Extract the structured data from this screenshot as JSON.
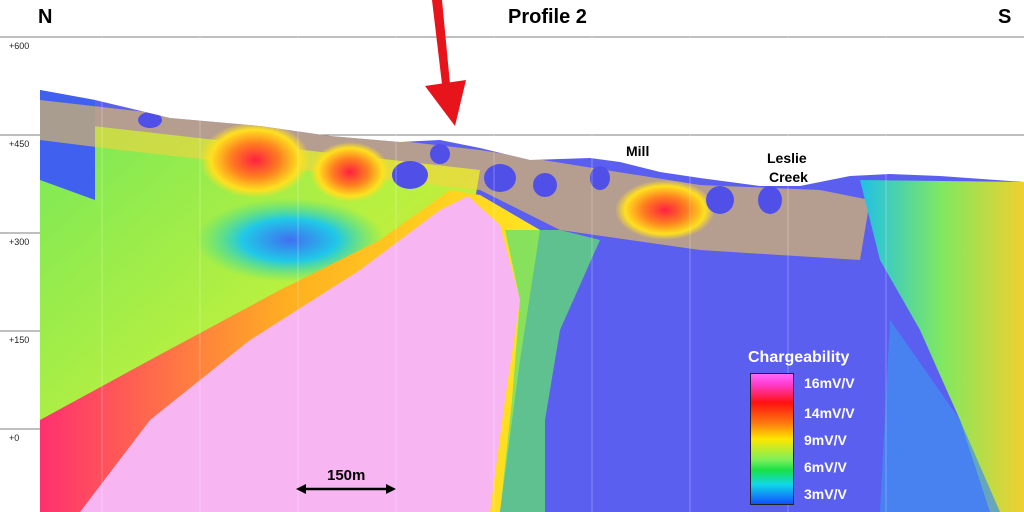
{
  "header": {
    "left_label": "N",
    "title": "Profile 2",
    "right_label": "S"
  },
  "elevation_labels": [
    "+600",
    "+450",
    "+300",
    "+150",
    "+0"
  ],
  "annotations": {
    "mill": "Mill",
    "creek_line1": "Leslie",
    "creek_line2": "Creek"
  },
  "scale_bar": {
    "label": "150m"
  },
  "legend": {
    "title": "Chargeability",
    "labels": [
      "16mV/V",
      "14mV/V",
      "9mV/V",
      "6mV/V",
      "3mV/V"
    ]
  },
  "colors": {
    "arrow": "#e8141c",
    "background_low": "#5b5ff0",
    "high": "#f7b5f2"
  }
}
